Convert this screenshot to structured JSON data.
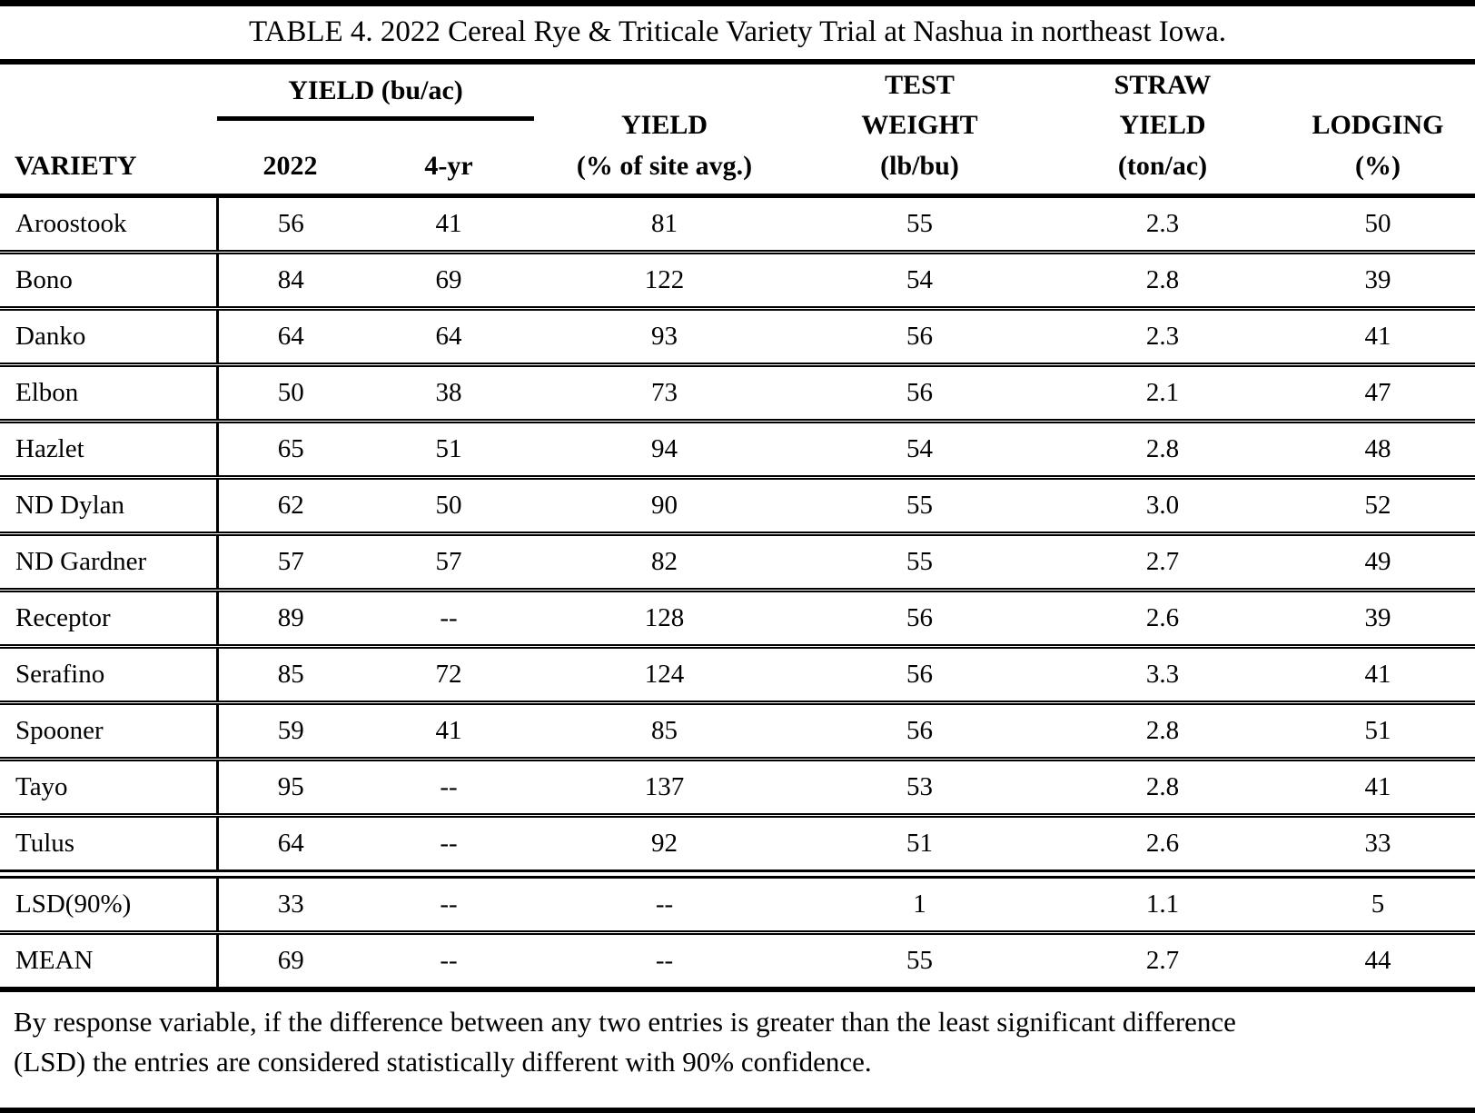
{
  "table": {
    "title": "TABLE 4. 2022 Cereal Rye & Triticale Variety Trial at Nashua in northeast Iowa.",
    "columns": {
      "variety": "VARIETY",
      "yield_group": "YIELD (bu/ac)",
      "y2022": "2022",
      "y4yr": "4-yr",
      "yield_pct": "YIELD\n(% of site avg.)",
      "test_weight": "TEST\nWEIGHT\n(lb/bu)",
      "straw_yield": "STRAW\nYIELD\n(ton/ac)",
      "lodging": "LODGING\n(%)"
    },
    "rows": [
      {
        "variety": "Aroostook",
        "y2022": "56",
        "y4yr": "41",
        "yield_pct": "81",
        "test_weight": "55",
        "straw_yield": "2.3",
        "lodging": "50"
      },
      {
        "variety": "Bono",
        "y2022": "84",
        "y4yr": "69",
        "yield_pct": "122",
        "test_weight": "54",
        "straw_yield": "2.8",
        "lodging": "39"
      },
      {
        "variety": "Danko",
        "y2022": "64",
        "y4yr": "64",
        "yield_pct": "93",
        "test_weight": "56",
        "straw_yield": "2.3",
        "lodging": "41"
      },
      {
        "variety": "Elbon",
        "y2022": "50",
        "y4yr": "38",
        "yield_pct": "73",
        "test_weight": "56",
        "straw_yield": "2.1",
        "lodging": "47"
      },
      {
        "variety": "Hazlet",
        "y2022": "65",
        "y4yr": "51",
        "yield_pct": "94",
        "test_weight": "54",
        "straw_yield": "2.8",
        "lodging": "48"
      },
      {
        "variety": "ND Dylan",
        "y2022": "62",
        "y4yr": "50",
        "yield_pct": "90",
        "test_weight": "55",
        "straw_yield": "3.0",
        "lodging": "52"
      },
      {
        "variety": "ND Gardner",
        "y2022": "57",
        "y4yr": "57",
        "yield_pct": "82",
        "test_weight": "55",
        "straw_yield": "2.7",
        "lodging": "49"
      },
      {
        "variety": "Receptor",
        "y2022": "89",
        "y4yr": "--",
        "yield_pct": "128",
        "test_weight": "56",
        "straw_yield": "2.6",
        "lodging": "39"
      },
      {
        "variety": "Serafino",
        "y2022": "85",
        "y4yr": "72",
        "yield_pct": "124",
        "test_weight": "56",
        "straw_yield": "3.3",
        "lodging": "41"
      },
      {
        "variety": "Spooner",
        "y2022": "59",
        "y4yr": "41",
        "yield_pct": "85",
        "test_weight": "56",
        "straw_yield": "2.8",
        "lodging": "51"
      },
      {
        "variety": "Tayo",
        "y2022": "95",
        "y4yr": "--",
        "yield_pct": "137",
        "test_weight": "53",
        "straw_yield": "2.8",
        "lodging": "41"
      },
      {
        "variety": "Tulus",
        "y2022": "64",
        "y4yr": "--",
        "yield_pct": "92",
        "test_weight": "51",
        "straw_yield": "2.6",
        "lodging": "33"
      }
    ],
    "summary_rows": [
      {
        "variety": "LSD(90%)",
        "y2022": "33",
        "y4yr": "--",
        "yield_pct": "--",
        "test_weight": "1",
        "straw_yield": "1.1",
        "lodging": "5"
      },
      {
        "variety": "MEAN",
        "y2022": "69",
        "y4yr": "--",
        "yield_pct": "--",
        "test_weight": "55",
        "straw_yield": "2.7",
        "lodging": "44"
      }
    ],
    "footnote": "By response variable, if the difference between any two entries is greater than the least significant difference\n(LSD) the entries are considered statistically different with 90% confidence."
  }
}
